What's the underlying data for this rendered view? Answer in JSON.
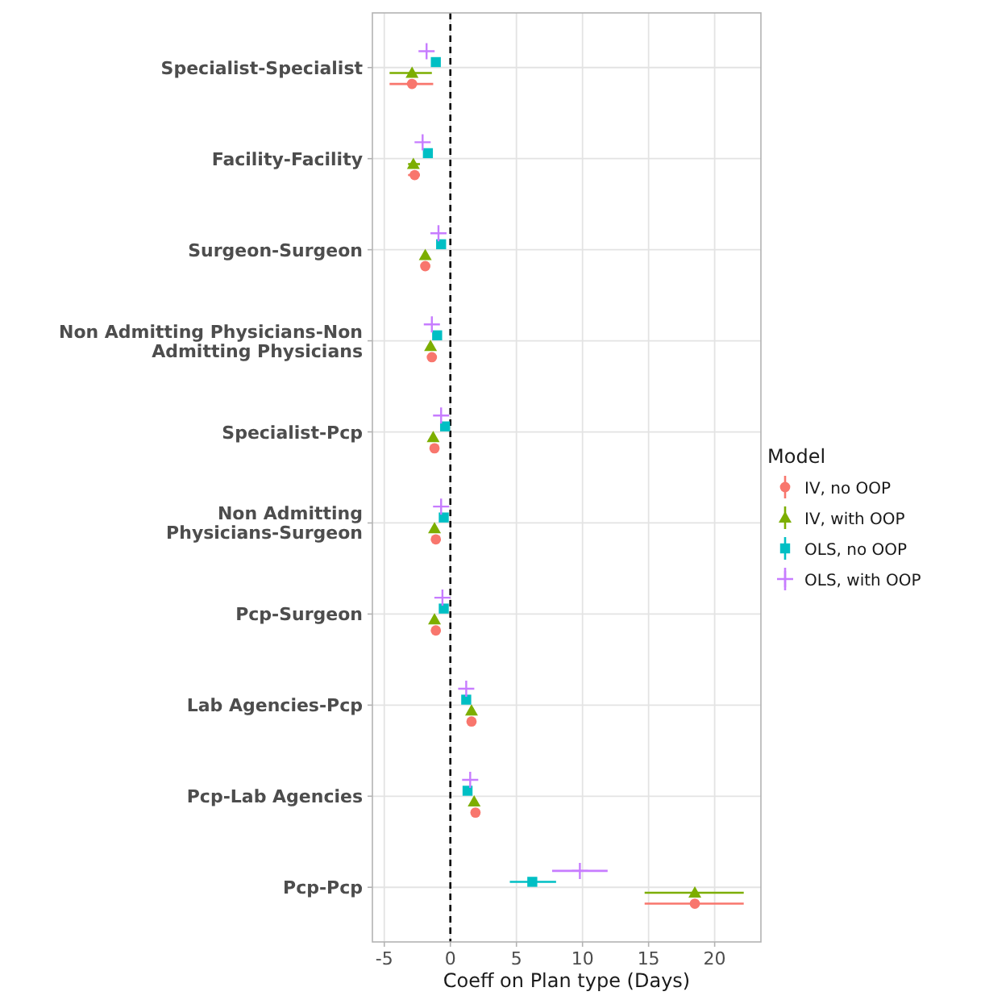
{
  "chart_data": {
    "type": "scatter",
    "orientation": "horizontal",
    "xlabel": "Coeff on Plan type (Days)",
    "legend_title": "Model",
    "legend": "right",
    "grid": true,
    "categories": [
      "Specialist-Specialist",
      "Facility-Facility",
      "Surgeon-Surgeon",
      "Non Admitting Physicians-Non Admitting Physicians",
      "Specialist-Pcp",
      "Non Admitting Physicians-Surgeon",
      "Pcp-Surgeon",
      "Lab Agencies-Pcp",
      "Pcp-Lab Agencies",
      "Pcp-Pcp"
    ],
    "xlim": [
      -5.9,
      23.5
    ],
    "xticks": [
      -5,
      0,
      5,
      10,
      15,
      20
    ],
    "ref_lines": [
      {
        "axis": "x",
        "value": 0,
        "color": "#000000",
        "line_style": "dashed"
      }
    ],
    "series": [
      {
        "name": "IV, no OOP",
        "color": "#f8766d",
        "marker": "circle",
        "values": [
          -2.9,
          -2.7,
          -1.9,
          -1.4,
          -1.2,
          -1.1,
          -1.1,
          1.6,
          1.9,
          18.5
        ],
        "errors": [
          [
            -4.6,
            -1.3
          ],
          [
            -3.2,
            -2.3
          ],
          null,
          null,
          null,
          null,
          null,
          null,
          null,
          [
            14.7,
            22.2
          ]
        ]
      },
      {
        "name": "IV, with OOP",
        "color": "#7cae00",
        "marker": "triangle",
        "values": [
          -2.9,
          -2.8,
          -1.9,
          -1.5,
          -1.3,
          -1.2,
          -1.2,
          1.6,
          1.8,
          18.5
        ],
        "errors": [
          [
            -4.6,
            -1.4
          ],
          [
            -3.2,
            -2.3
          ],
          null,
          null,
          null,
          null,
          null,
          null,
          null,
          [
            14.7,
            22.2
          ]
        ]
      },
      {
        "name": "OLS, no OOP",
        "color": "#00bfc4",
        "marker": "square",
        "values": [
          -1.1,
          -1.7,
          -0.7,
          -1.0,
          -0.4,
          -0.5,
          -0.5,
          1.2,
          1.3,
          6.2
        ],
        "errors": [
          null,
          null,
          null,
          null,
          null,
          null,
          null,
          null,
          null,
          [
            4.5,
            8.0
          ]
        ]
      },
      {
        "name": "OLS, with OOP",
        "color": "#c77cff",
        "marker": "cross",
        "values": [
          -1.8,
          -2.1,
          -0.9,
          -1.4,
          -0.7,
          -0.7,
          -0.6,
          1.2,
          1.5,
          9.8
        ],
        "errors": [
          null,
          null,
          null,
          null,
          null,
          null,
          null,
          null,
          null,
          [
            7.7,
            11.9
          ]
        ]
      }
    ]
  }
}
